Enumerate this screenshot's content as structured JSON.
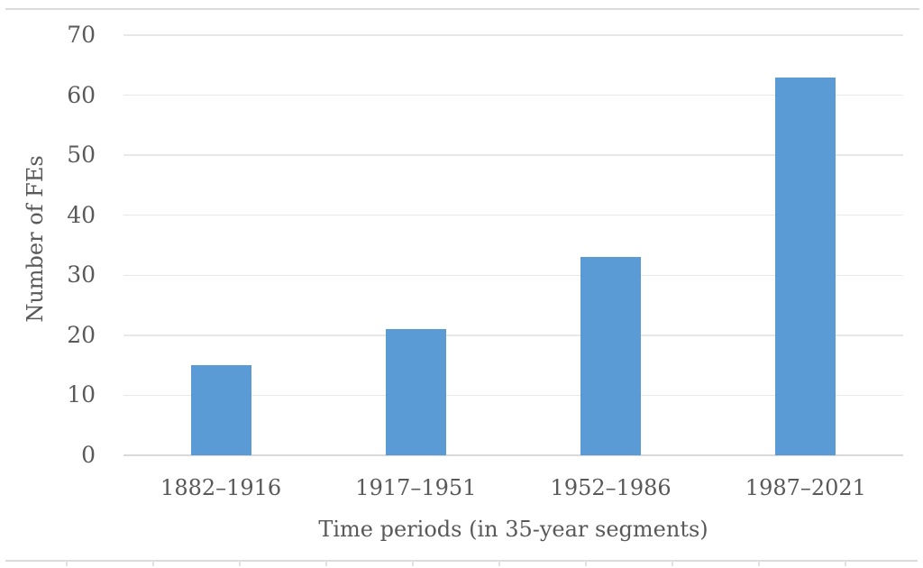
{
  "figure": {
    "background": "#FFFFFF",
    "top_rule": true,
    "bottom_rule_with_column_ticks": true
  },
  "colors": {
    "bar": "#5B9BD5",
    "gridline": "#E8E8E8",
    "axis_line": "#D9D9D9",
    "text": "#595959",
    "rule": "#DBDBDB"
  },
  "chart_data": {
    "type": "bar",
    "categories": [
      "1882–1916",
      "1917–1951",
      "1952–1986",
      "1987–2021"
    ],
    "values": [
      15,
      21,
      33,
      63
    ],
    "title": "",
    "xlabel": "Time periods (in 35-year segments)",
    "ylabel": "Number of FEs",
    "ylim": [
      0,
      70
    ],
    "yticks": [
      0,
      10,
      20,
      30,
      40,
      50,
      60,
      70
    ],
    "grid": true,
    "legend": false,
    "bar_color": "#5B9BD5"
  }
}
